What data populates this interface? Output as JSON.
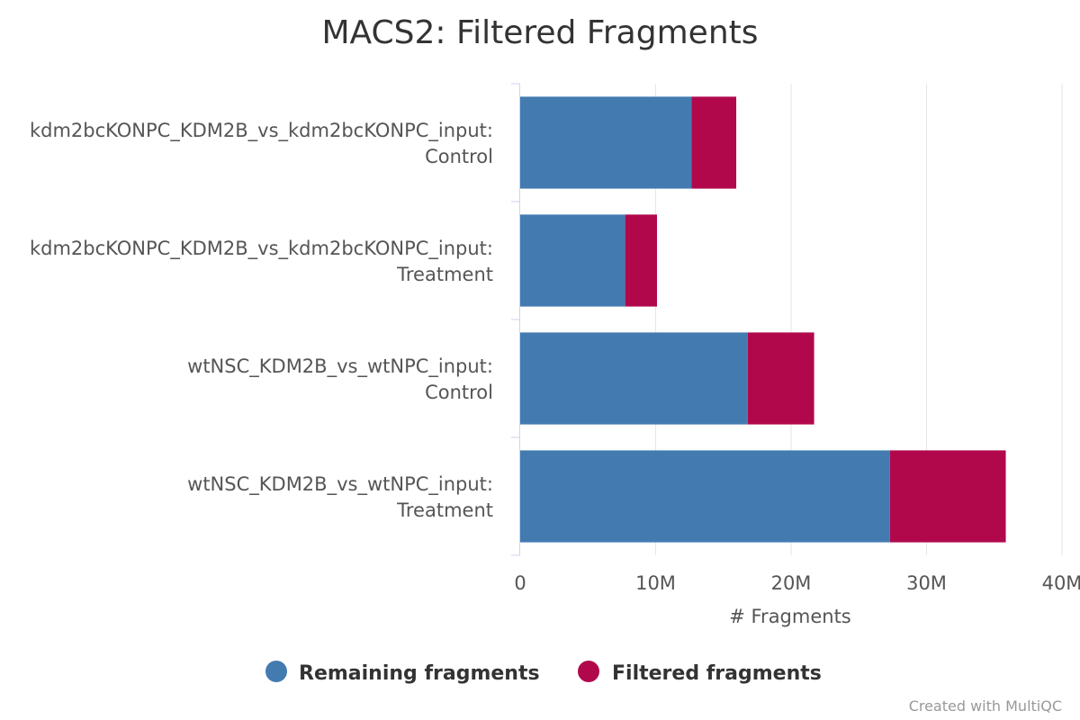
{
  "chart_data": {
    "type": "bar",
    "orientation": "horizontal",
    "stacked": true,
    "title": "MACS2: Filtered Fragments",
    "xlabel": "# Fragments",
    "ylabel": "",
    "xlim": [
      0,
      40000000
    ],
    "ticks": [
      {
        "value": 0,
        "label": "0"
      },
      {
        "value": 10000000,
        "label": "10M"
      },
      {
        "value": 20000000,
        "label": "20M"
      },
      {
        "value": 30000000,
        "label": "30M"
      },
      {
        "value": 40000000,
        "label": "40M"
      }
    ],
    "categories": [
      [
        "kdm2bcKONPC_KDM2B_vs_kdm2bcKONPC_input:",
        "Control"
      ],
      [
        "kdm2bcKONPC_KDM2B_vs_kdm2bcKONPC_input:",
        "Treatment"
      ],
      [
        "wtNSC_KDM2B_vs_wtNPC_input:",
        "Control"
      ],
      [
        "wtNSC_KDM2B_vs_wtNPC_input:",
        "Treatment"
      ]
    ],
    "series": [
      {
        "name": "Remaining fragments",
        "color": "#437bb1",
        "values": [
          12650000,
          7750000,
          16800000,
          27300000
        ]
      },
      {
        "name": "Filtered fragments",
        "color": "#b1084c",
        "values": [
          3300000,
          2350000,
          4900000,
          8550000
        ]
      }
    ],
    "grid": true,
    "legend_position": "bottom-center"
  },
  "credits": "Created with MultiQC"
}
